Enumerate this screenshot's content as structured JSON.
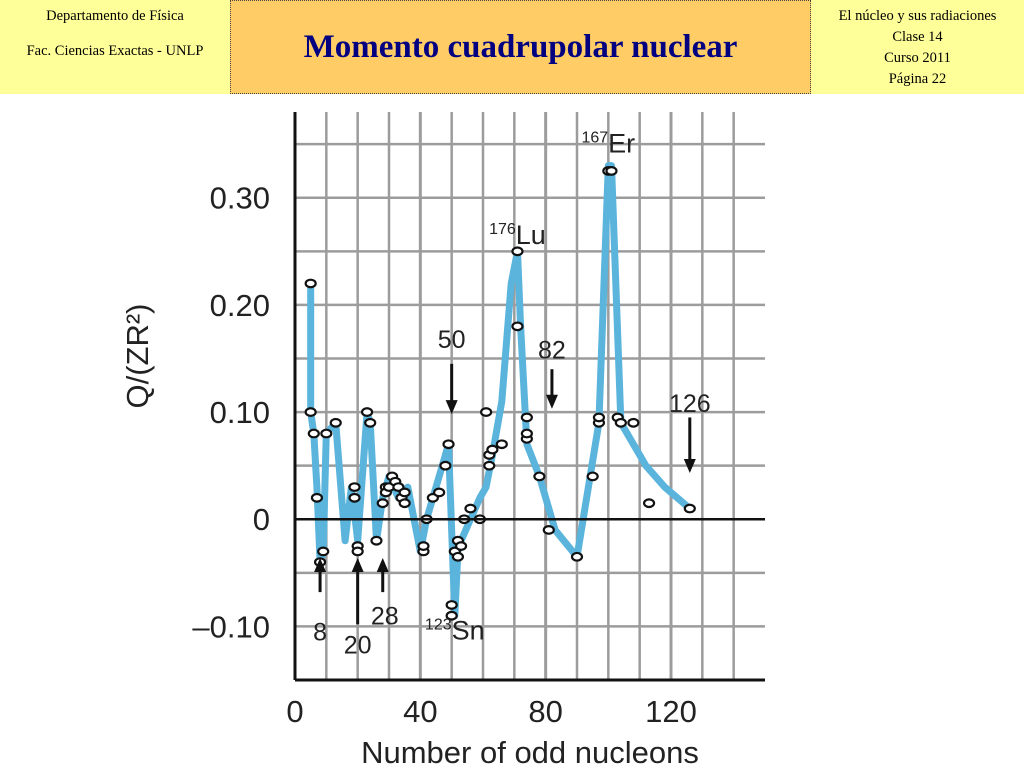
{
  "header": {
    "left_line1": "Departamento de Física",
    "left_line2": "Fac. Ciencias Exactas - UNLP",
    "title": "Momento cuadrupolar nuclear",
    "right_line1": "El núcleo y sus radiaciones",
    "right_line2": "Clase 14",
    "right_line3": "Curso 2011",
    "right_line4": "Página 22"
  },
  "colors": {
    "curve": "#5ab4dc",
    "marker": "#111111",
    "grid": "#9c9c9c",
    "axis": "#111111",
    "title": "#000080"
  },
  "chart_data": {
    "type": "line",
    "xlabel": "Number of odd nucleons",
    "ylabel": "Q/(ZR²)",
    "xlim": [
      0,
      150
    ],
    "ylim": [
      -0.15,
      0.38
    ],
    "xticks": [
      "0",
      "40",
      "80",
      "120"
    ],
    "xtick_values": [
      0,
      40,
      80,
      120
    ],
    "yticks": [
      "–0.10",
      "0",
      "0.10",
      "0.20",
      "0.30"
    ],
    "ytick_values": [
      -0.1,
      0,
      0.1,
      0.2,
      0.3
    ],
    "grid": true,
    "curve_x": [
      5,
      5,
      6,
      7,
      8,
      9,
      10,
      13,
      16,
      18,
      20,
      21,
      23,
      24,
      26,
      28,
      30,
      33,
      36,
      40,
      42,
      44,
      47,
      49,
      51,
      52,
      53,
      56,
      59,
      61,
      63,
      66,
      69,
      71,
      72,
      74,
      78,
      83,
      90,
      97,
      100,
      101,
      104,
      108,
      112,
      118,
      126
    ],
    "curve_y": [
      0.22,
      0.1,
      0.08,
      0.03,
      -0.04,
      -0.03,
      0.08,
      0.09,
      -0.02,
      0.03,
      -0.02,
      0.02,
      0.1,
      0.09,
      -0.02,
      0.02,
      0.04,
      0.02,
      0.03,
      -0.03,
      0.0,
      0.02,
      0.05,
      0.07,
      -0.09,
      -0.03,
      -0.02,
      0.0,
      0.02,
      0.03,
      0.06,
      0.11,
      0.22,
      0.25,
      0.18,
      0.07,
      0.04,
      -0.01,
      -0.035,
      0.09,
      0.33,
      0.33,
      0.09,
      0.07,
      0.05,
      0.03,
      0.01
    ],
    "points_x": [
      5,
      5,
      6,
      7,
      8,
      9,
      10,
      13,
      19,
      19,
      20,
      20,
      23,
      24,
      26,
      28,
      29,
      29,
      30,
      31,
      32,
      33,
      34,
      35,
      35,
      41,
      41,
      42,
      44,
      46,
      48,
      49,
      50,
      50,
      51,
      52,
      52,
      53,
      54,
      56,
      59,
      61,
      62,
      62,
      63,
      66,
      71,
      71,
      74,
      74,
      74,
      78,
      81,
      90,
      95,
      97,
      97,
      100,
      101,
      103,
      104,
      108,
      113,
      126
    ],
    "points_y": [
      0.22,
      0.1,
      0.08,
      0.02,
      -0.04,
      -0.03,
      0.08,
      0.09,
      0.03,
      0.02,
      -0.025,
      -0.03,
      0.1,
      0.09,
      -0.02,
      0.015,
      0.03,
      0.025,
      0.03,
      0.04,
      0.035,
      0.03,
      0.02,
      0.015,
      0.025,
      -0.03,
      -0.025,
      0.0,
      0.02,
      0.025,
      0.05,
      0.07,
      -0.09,
      -0.08,
      -0.03,
      -0.035,
      -0.02,
      -0.025,
      0.0,
      0.01,
      0.0,
      0.1,
      0.05,
      0.06,
      0.065,
      0.07,
      0.25,
      0.18,
      0.095,
      0.075,
      0.08,
      0.04,
      -0.01,
      -0.035,
      0.04,
      0.09,
      0.095,
      0.325,
      0.325,
      0.095,
      0.09,
      0.09,
      0.015,
      0.01
    ],
    "annotations": [
      {
        "text": "8",
        "x": 8,
        "y": -0.1,
        "arrow": "up",
        "arrow_from": -0.068,
        "arrow_to": -0.038
      },
      {
        "text": "20",
        "x": 20,
        "y": -0.112,
        "arrow": "up",
        "arrow_from": -0.098,
        "arrow_to": -0.038
      },
      {
        "text": "28",
        "x": 28,
        "y": -0.085,
        "arrow": "up",
        "arrow_from": -0.068,
        "arrow_to": -0.038
      },
      {
        "text": "50",
        "x": 50,
        "y": 0.16,
        "arrow": "down",
        "arrow_from": 0.145,
        "arrow_to": 0.1
      },
      {
        "text": "82",
        "x": 82,
        "y": 0.15,
        "arrow": "down",
        "arrow_from": 0.14,
        "arrow_to": 0.105
      },
      {
        "text": "126",
        "x": 126,
        "y": 0.1,
        "arrow": "down",
        "arrow_from": 0.095,
        "arrow_to": 0.045
      }
    ],
    "isotopes": [
      {
        "mass": "123",
        "symbol": "Sn",
        "x": 51,
        "y": -0.112
      },
      {
        "mass": "176",
        "symbol": "Lu",
        "x": 71,
        "y": 0.257
      },
      {
        "mass": "167",
        "symbol": "Er",
        "x": 100,
        "y": 0.342
      }
    ]
  }
}
